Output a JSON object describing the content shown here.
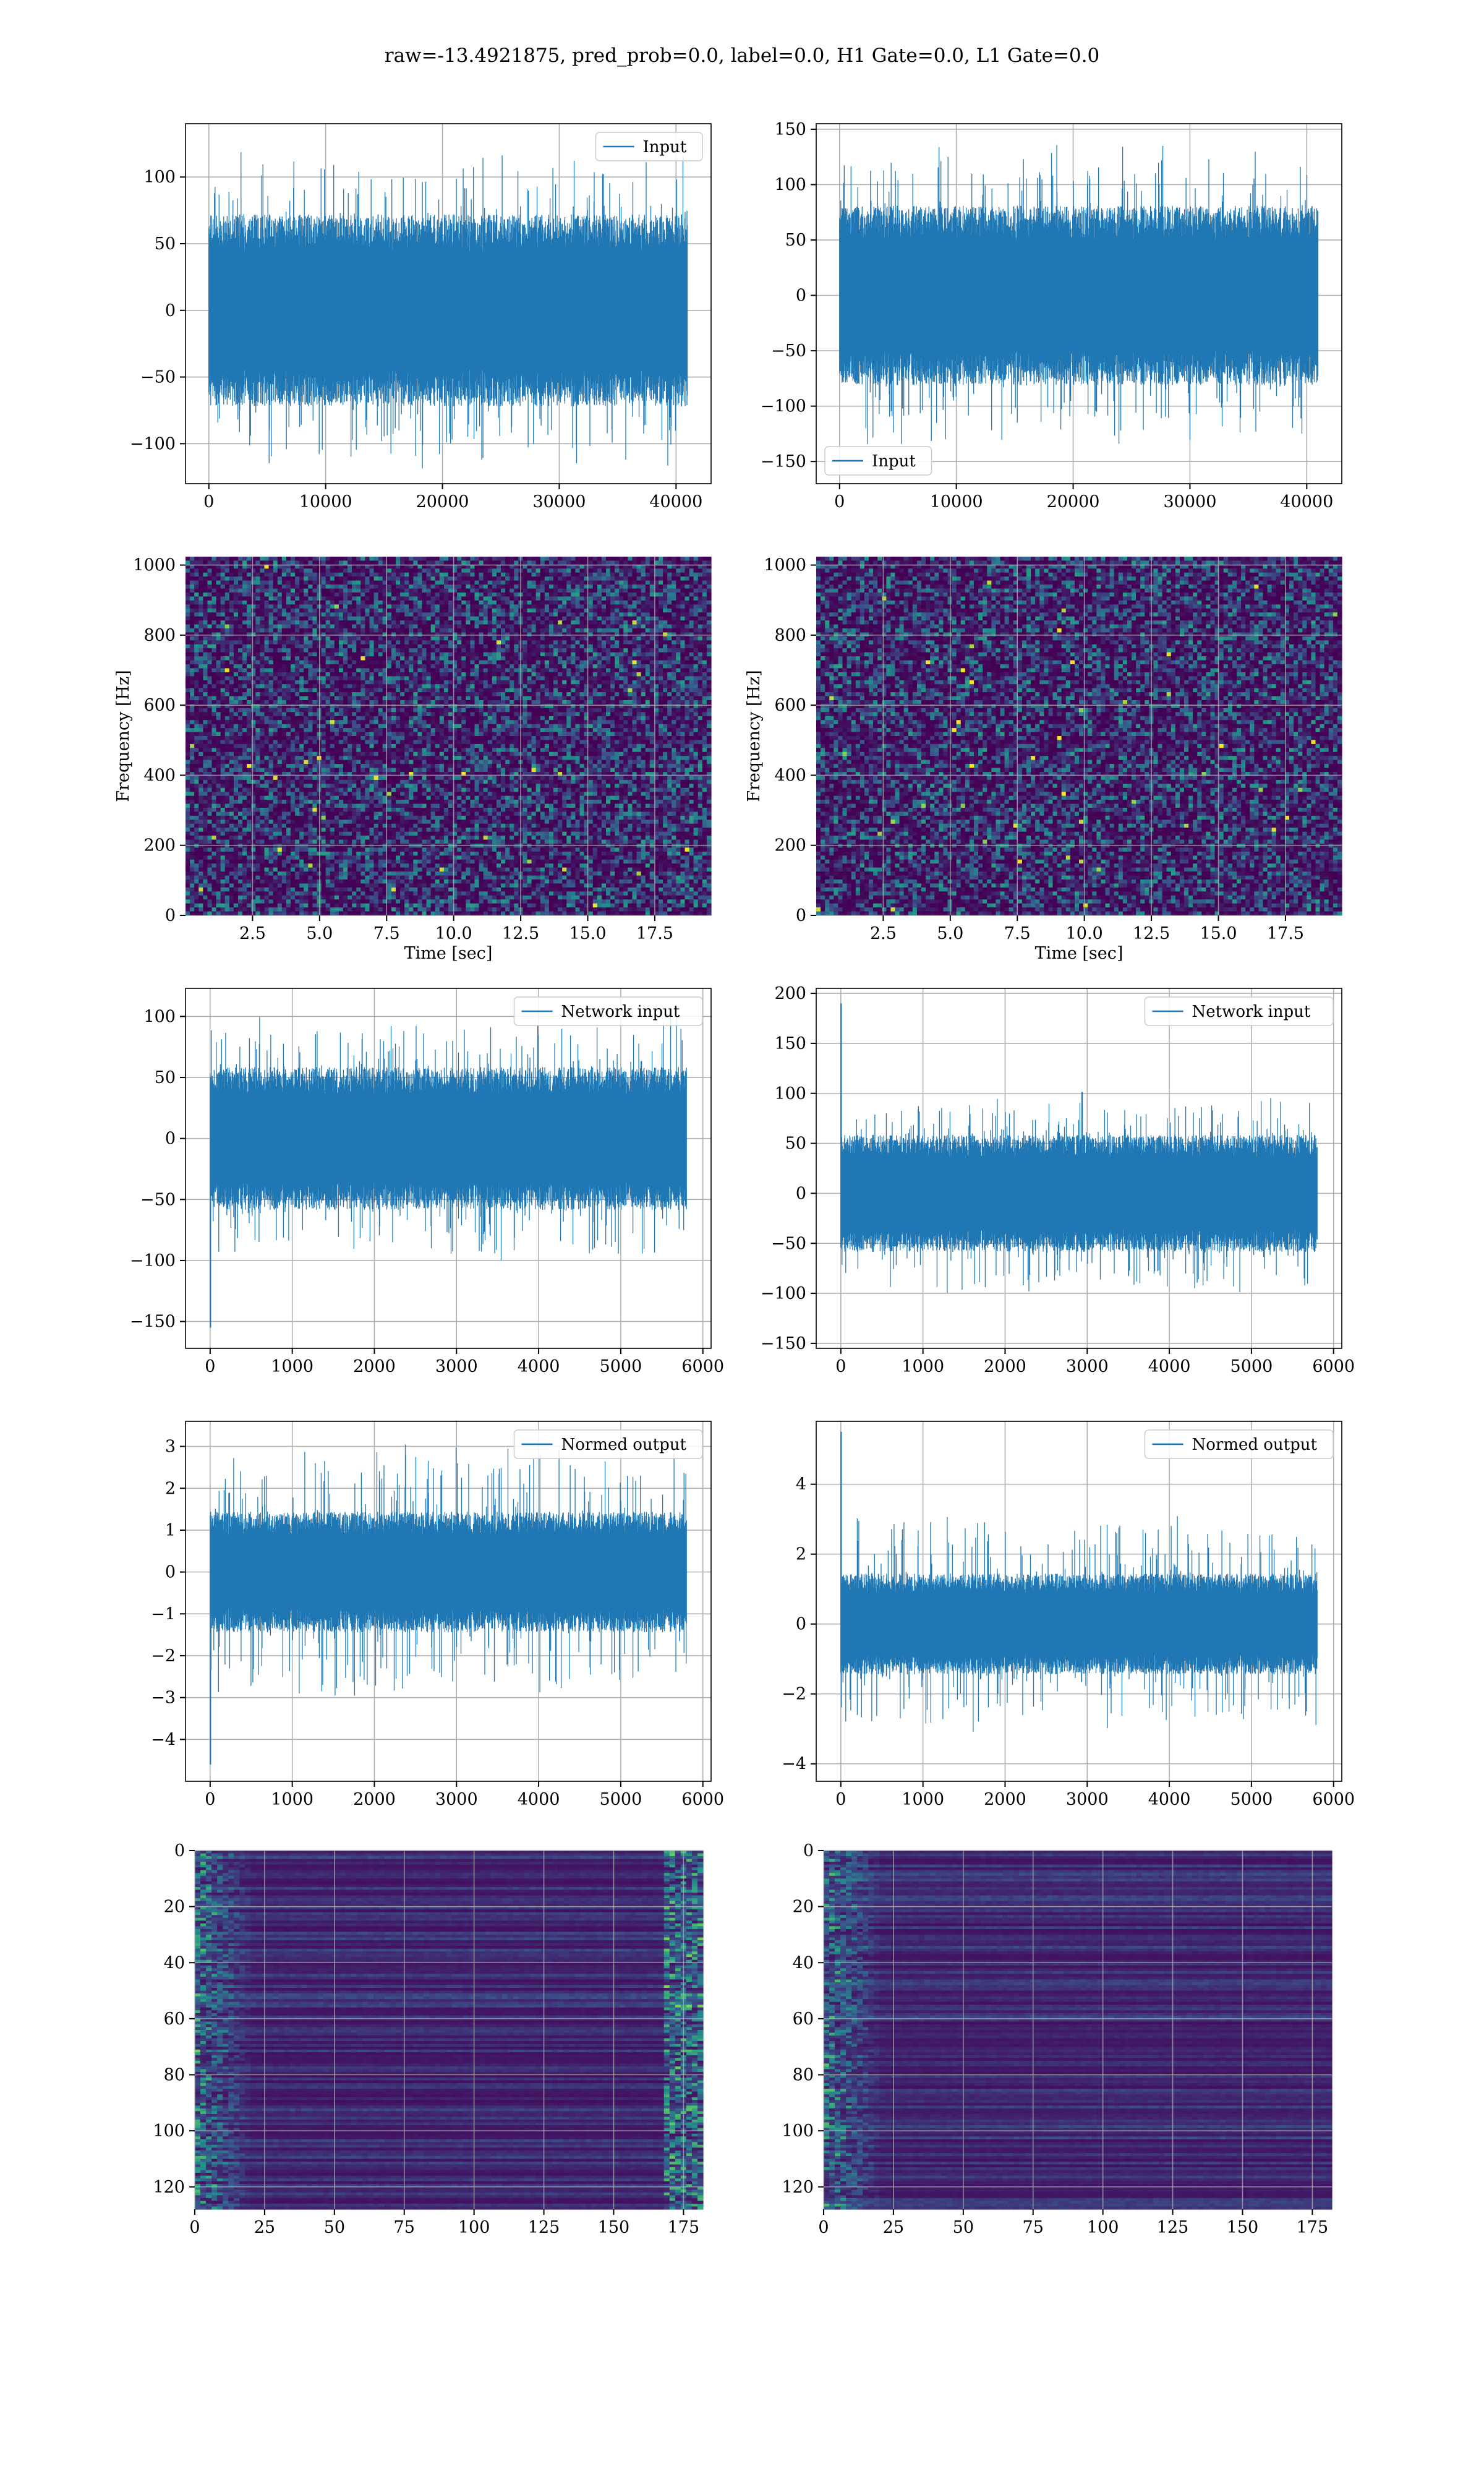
{
  "figure": {
    "suptitle": "raw=-13.4921875, pred_prob=0.0, label=0.0, H1 Gate=0.0, L1 Gate=0.0"
  },
  "colors": {
    "line": "#1f77b4",
    "grid": "#b0b0b0",
    "axes": "#000000",
    "viridis": [
      "#440154",
      "#3b528b",
      "#21918c",
      "#5ec962",
      "#fde725"
    ]
  },
  "chart_data": [
    {
      "id": "h1-input",
      "type": "line",
      "panel": "row1-left",
      "series": [
        {
          "name": "Input",
          "x_range": [
            0,
            40960
          ],
          "amplitude": 80,
          "peak": 130
        }
      ],
      "legend": "top-right",
      "xlim": [
        -2000,
        43000
      ],
      "ylim": [
        -130,
        140
      ],
      "xticks": [
        0,
        10000,
        20000,
        30000,
        40000
      ],
      "yticks": [
        -100,
        -50,
        0,
        50,
        100
      ],
      "xlabel": "",
      "ylabel": "",
      "grid": true
    },
    {
      "id": "l1-input",
      "type": "line",
      "panel": "row1-right",
      "series": [
        {
          "name": "Input",
          "x_range": [
            0,
            40960
          ],
          "amplitude": 90,
          "peak": 150
        }
      ],
      "legend": "lower-left",
      "xlim": [
        -2000,
        43000
      ],
      "ylim": [
        -170,
        155
      ],
      "xticks": [
        0,
        10000,
        20000,
        30000,
        40000
      ],
      "yticks": [
        -150,
        -100,
        -50,
        0,
        50,
        100,
        150
      ],
      "xlabel": "",
      "ylabel": "",
      "grid": true
    },
    {
      "id": "h1-spectrogram",
      "type": "heatmap",
      "panel": "row2-left",
      "xlim": [
        0,
        19.6
      ],
      "ylim": [
        0,
        1024
      ],
      "xticks": [
        2.5,
        5.0,
        7.5,
        10.0,
        12.5,
        15.0,
        17.5
      ],
      "xtick_labels": [
        "2.5",
        "5.0",
        "7.5",
        "10.0",
        "12.5",
        "15.0",
        "17.5"
      ],
      "yticks": [
        0,
        200,
        400,
        600,
        800,
        1000
      ],
      "xlabel": "Time [sec]",
      "ylabel": "Frequency [Hz]",
      "grid": true
    },
    {
      "id": "l1-spectrogram",
      "type": "heatmap",
      "panel": "row2-right",
      "xlim": [
        0,
        19.6
      ],
      "ylim": [
        0,
        1024
      ],
      "xticks": [
        2.5,
        5.0,
        7.5,
        10.0,
        12.5,
        15.0,
        17.5
      ],
      "xtick_labels": [
        "2.5",
        "5.0",
        "7.5",
        "10.0",
        "12.5",
        "15.0",
        "17.5"
      ],
      "yticks": [
        0,
        200,
        400,
        600,
        800,
        1000
      ],
      "xlabel": "Time [sec]",
      "ylabel": "Frequency [Hz]",
      "grid": true
    },
    {
      "id": "h1-network-input",
      "type": "line",
      "panel": "row3-left",
      "series": [
        {
          "name": "Network input",
          "x_range": [
            0,
            5800
          ],
          "amplitude": 65,
          "peak": 110,
          "spike": -155
        }
      ],
      "legend": "top-right",
      "xlim": [
        -300,
        6100
      ],
      "ylim": [
        -172,
        123
      ],
      "xticks": [
        0,
        1000,
        2000,
        3000,
        4000,
        5000,
        6000
      ],
      "yticks": [
        -150,
        -100,
        -50,
        0,
        50,
        100
      ],
      "xlabel": "",
      "ylabel": "",
      "grid": true
    },
    {
      "id": "l1-network-input",
      "type": "line",
      "panel": "row3-right",
      "series": [
        {
          "name": "Network input",
          "x_range": [
            0,
            5800
          ],
          "amplitude": 65,
          "peak": 110,
          "spike": 190
        }
      ],
      "legend": "top-right",
      "xlim": [
        -300,
        6100
      ],
      "ylim": [
        -155,
        205
      ],
      "xticks": [
        0,
        1000,
        2000,
        3000,
        4000,
        5000,
        6000
      ],
      "yticks": [
        -150,
        -100,
        -50,
        0,
        50,
        100,
        150,
        200
      ],
      "xlabel": "",
      "ylabel": "",
      "grid": true
    },
    {
      "id": "h1-normed-output",
      "type": "line",
      "panel": "row4-left",
      "series": [
        {
          "name": "Normed output",
          "x_range": [
            0,
            5800
          ],
          "amplitude": 1.6,
          "peak": 3.3,
          "spike": -4.6
        }
      ],
      "legend": "top-right",
      "xlim": [
        -300,
        6100
      ],
      "ylim": [
        -5.0,
        3.6
      ],
      "xticks": [
        0,
        1000,
        2000,
        3000,
        4000,
        5000,
        6000
      ],
      "yticks": [
        -4,
        -3,
        -2,
        -1,
        0,
        1,
        2,
        3
      ],
      "xlabel": "",
      "ylabel": "",
      "grid": true
    },
    {
      "id": "l1-normed-output",
      "type": "line",
      "panel": "row4-right",
      "series": [
        {
          "name": "Normed output",
          "x_range": [
            0,
            5800
          ],
          "amplitude": 1.6,
          "peak": 3.3,
          "spike": 5.5
        }
      ],
      "legend": "top-right",
      "xlim": [
        -300,
        6100
      ],
      "ylim": [
        -4.5,
        5.8
      ],
      "xticks": [
        0,
        1000,
        2000,
        3000,
        4000,
        5000,
        6000
      ],
      "yticks": [
        -4,
        -2,
        0,
        2,
        4
      ],
      "xlabel": "",
      "ylabel": "",
      "grid": true
    },
    {
      "id": "h1-feature-map",
      "type": "heatmap",
      "panel": "row5-left",
      "xlim": [
        0,
        182
      ],
      "ylim": [
        128,
        0
      ],
      "xticks": [
        0,
        25,
        50,
        75,
        100,
        125,
        150,
        175
      ],
      "yticks": [
        0,
        20,
        40,
        60,
        80,
        100,
        120
      ],
      "xlabel": "",
      "ylabel": "",
      "grid": true
    },
    {
      "id": "l1-feature-map",
      "type": "heatmap",
      "panel": "row5-right",
      "xlim": [
        0,
        182
      ],
      "ylim": [
        128,
        0
      ],
      "xticks": [
        0,
        25,
        50,
        75,
        100,
        125,
        150,
        175
      ],
      "yticks": [
        0,
        20,
        40,
        60,
        80,
        100,
        120
      ],
      "xlabel": "",
      "ylabel": "",
      "grid": true
    }
  ]
}
